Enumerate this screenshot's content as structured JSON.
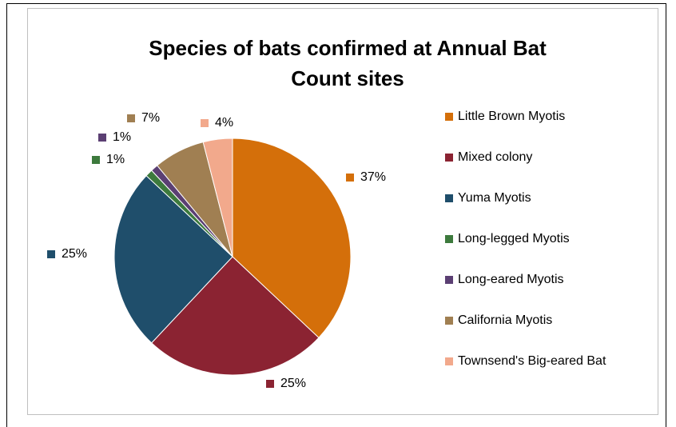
{
  "chart_data": {
    "type": "pie",
    "title": "Species of bats confirmed at Annual Bat Count sites",
    "categories": [
      "Little Brown Myotis",
      "Mixed colony",
      "Yuma Myotis",
      "Long-legged Myotis",
      "Long-eared Myotis",
      "California Myotis",
      "Townsend's Big-eared Bat"
    ],
    "values": [
      37,
      25,
      25,
      1,
      1,
      7,
      4
    ],
    "value_labels": [
      "37%",
      "25%",
      "25%",
      "1%",
      "1%",
      "7%",
      "4%"
    ],
    "colors": [
      "#d46f0a",
      "#8b2332",
      "#1f4e6b",
      "#3d7a3d",
      "#5b3f73",
      "#a07f52",
      "#f2a98c"
    ],
    "legend_position": "right",
    "start_angle_deg": 0,
    "direction": "clockwise"
  }
}
